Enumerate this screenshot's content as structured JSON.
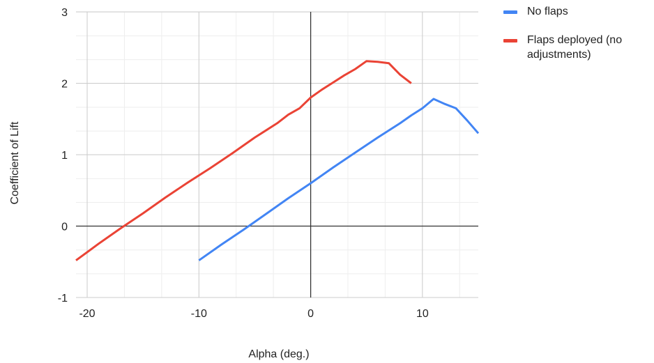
{
  "chart_data": {
    "type": "line",
    "title": "",
    "xlabel": "Alpha (deg.)",
    "ylabel": "Coefficient of Lift",
    "xlim": [
      -21,
      15
    ],
    "ylim": [
      -1,
      3
    ],
    "xticks": [
      -20,
      -10,
      0,
      10
    ],
    "yticks": [
      -1,
      0,
      1,
      2,
      3
    ],
    "x_minor_step": 3.333,
    "y_minor_step": 0.333,
    "grid": true,
    "legend_position": "top-right",
    "series": [
      {
        "name": "No flaps",
        "color": "#4285f4",
        "x": [
          -10,
          -8,
          -6,
          -4,
          -2,
          0,
          2,
          4,
          6,
          8,
          9,
          10,
          11,
          12,
          13,
          14,
          15
        ],
        "y": [
          -0.48,
          -0.26,
          -0.05,
          0.17,
          0.39,
          0.6,
          0.82,
          1.03,
          1.24,
          1.44,
          1.55,
          1.65,
          1.78,
          1.71,
          1.65,
          1.48,
          1.3
        ]
      },
      {
        "name": "Flaps deployed (no adjustments)",
        "color": "#ea4335",
        "x": [
          -21,
          -19,
          -17,
          -15,
          -13,
          -11,
          -9,
          -7,
          -5,
          -3,
          -2,
          -1,
          0,
          1,
          2,
          3,
          4,
          5,
          6,
          7,
          8,
          9
        ],
        "y": [
          -0.48,
          -0.25,
          -0.03,
          0.18,
          0.4,
          0.61,
          0.81,
          1.02,
          1.24,
          1.44,
          1.56,
          1.65,
          1.8,
          1.91,
          2.01,
          2.11,
          2.2,
          2.31,
          2.3,
          2.28,
          2.12,
          2.0
        ]
      }
    ]
  }
}
